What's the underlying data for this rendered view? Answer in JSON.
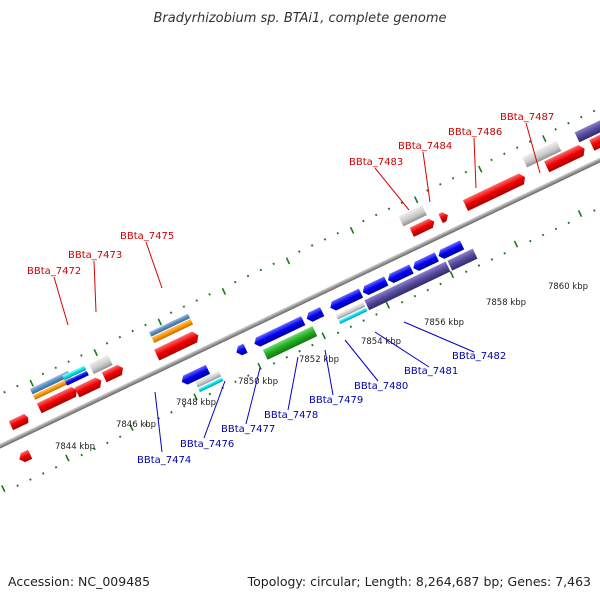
{
  "title": "Bradyrhizobium sp. BTAi1, complete genome",
  "footer": {
    "accession": "Accession: NC_009485",
    "topology": "Topology: circular; Length: 8,264,687 bp; Genes: 7,463"
  },
  "colors": {
    "label_top": "#cc0000",
    "label_bottom": "#0000aa",
    "leader_top": "#dd0000",
    "leader_bottom": "#0000cc",
    "tick": "#1a7a1a",
    "backbone": "#888888"
  },
  "kbp_labels": [
    "7844 kbp",
    "7846 kbp",
    "7848 kbp",
    "7850 kbp",
    "7852 kbp",
    "7854 kbp",
    "7856 kbp",
    "7858 kbp",
    "7860 kbp"
  ],
  "gene_labels_top": [
    "BBta_7472",
    "BBta_7473",
    "BBta_7475",
    "BBta_7483",
    "BBta_7484",
    "BBta_7486",
    "BBta_7487"
  ],
  "gene_labels_bottom": [
    "BBta_7474",
    "BBta_7476",
    "BBta_7477",
    "BBta_7478",
    "BBta_7479",
    "BBta_7480",
    "BBta_7481",
    "BBta_7482"
  ]
}
